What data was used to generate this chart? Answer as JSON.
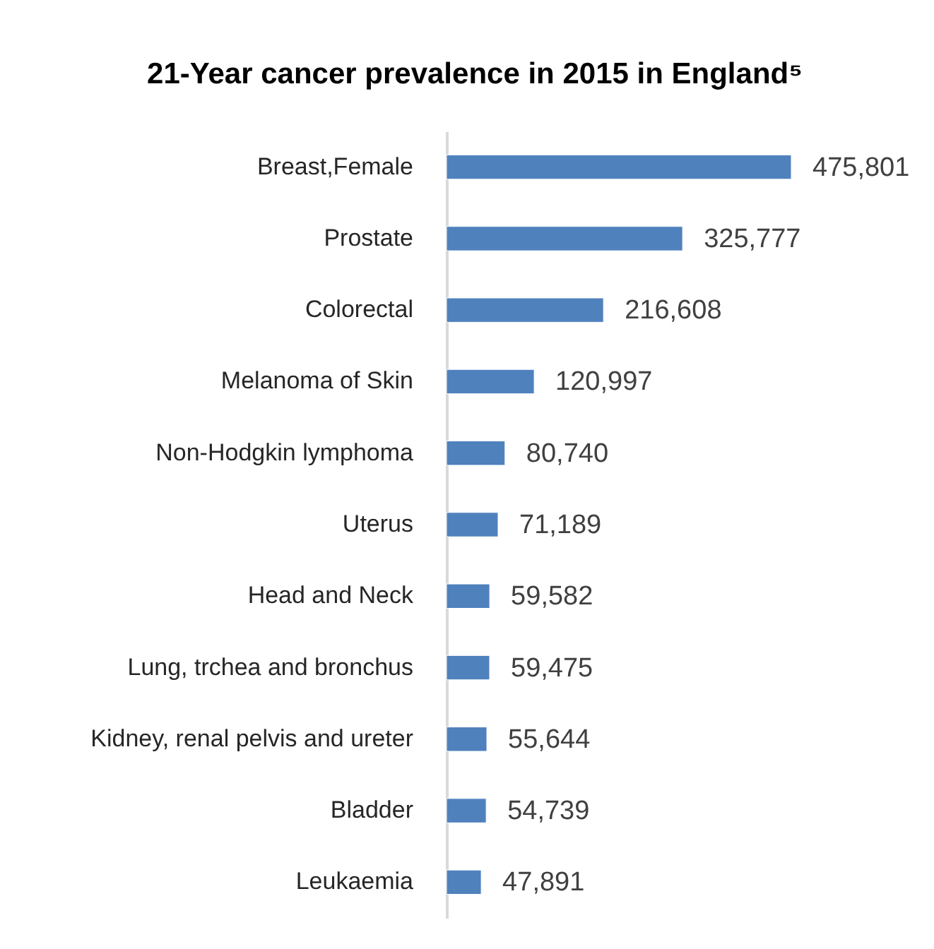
{
  "chart_data": {
    "type": "bar",
    "orientation": "horizontal",
    "title": "21-Year cancer prevalence in 2015 in England⁵",
    "categories": [
      "Breast,Female",
      "Prostate",
      "Colorectal",
      "Melanoma of Skin",
      "Non-Hodgkin lymphoma",
      "Uterus",
      "Head and Neck",
      "Lung, trchea and bronchus",
      "Kidney, renal pelvis and ureter",
      "Bladder",
      "Leukaemia"
    ],
    "values": [
      475801,
      325777,
      216608,
      120997,
      80740,
      71189,
      59582,
      59475,
      55644,
      54739,
      47891
    ],
    "value_labels": [
      "475,801",
      "325,777",
      "216,608",
      "120,997",
      "80,740",
      "71,189",
      "59,582",
      "59,475",
      "55,644",
      "54,739",
      "47,891"
    ],
    "color": "#4f81bd",
    "tick_labels": "y"
  }
}
